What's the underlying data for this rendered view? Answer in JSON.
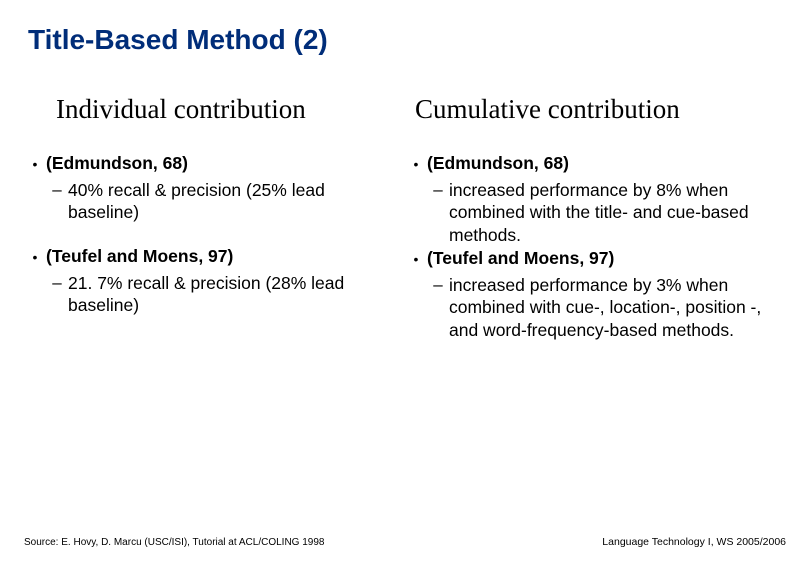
{
  "title": "Title-Based Method (2)",
  "left": {
    "heading": "Individual contribution",
    "items": [
      {
        "lead": "(Edmundson, 68)",
        "sub": " 40% recall & precision (25% lead baseline)"
      },
      {
        "lead": "(Teufel and Moens, 97)",
        "sub": "21. 7% recall & precision (28% lead baseline)"
      }
    ]
  },
  "right": {
    "heading": "Cumulative contribution",
    "items": [
      {
        "lead": "(Edmundson, 68)",
        "sub": "increased performance by 8% when combined with the title- and cue-based methods."
      },
      {
        "lead": "(Teufel and Moens, 97)",
        "sub": "increased performance by 3% when combined with cue-, location-, position -, and word-frequency-based methods."
      }
    ]
  },
  "footer_left": "Source: E. Hovy, D. Marcu (USC/ISI), Tutorial at ACL/COLING 1998",
  "footer_right": "Language Technology I, WS 2005/2006",
  "colors": {
    "title": "#002d79",
    "text": "#000000",
    "background": "#ffffff"
  }
}
